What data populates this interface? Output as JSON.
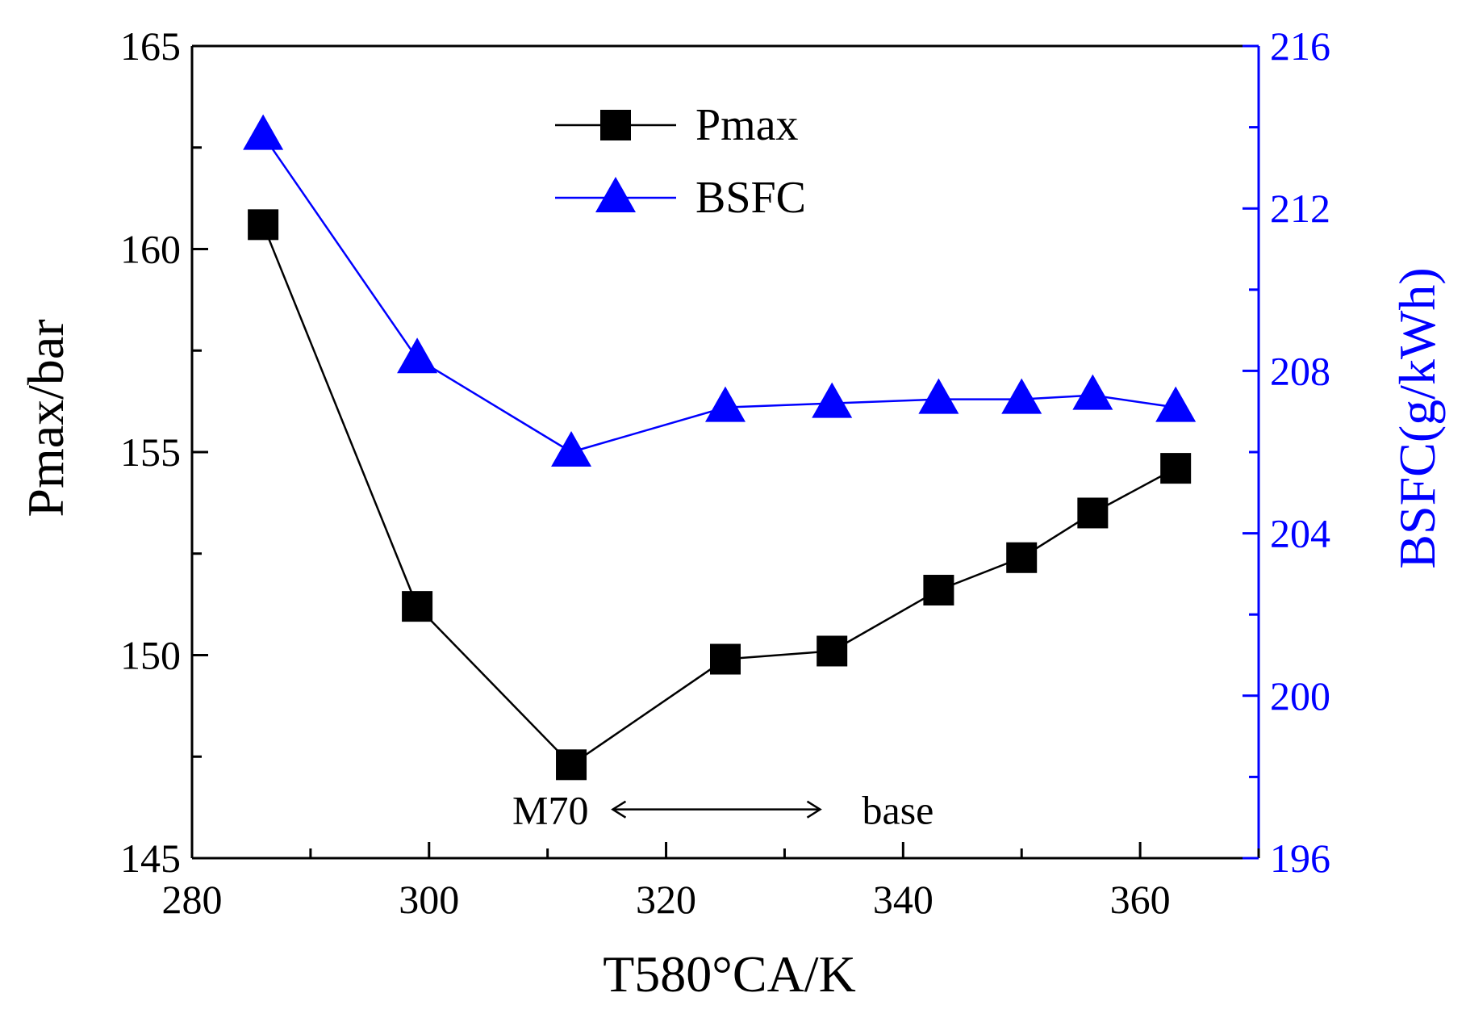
{
  "chart_data": {
    "type": "line",
    "xlabel": "T580°CA/K",
    "ylabel_left": "Pmax/bar",
    "ylabel_right": "BSFC(g/kWh)",
    "xlim": [
      280,
      370
    ],
    "ylim_left": [
      145,
      165
    ],
    "ylim_right": [
      196,
      216
    ],
    "x_ticks": [
      280,
      300,
      320,
      340,
      360
    ],
    "y_ticks_left": [
      145,
      150,
      155,
      160,
      165
    ],
    "y_ticks_right": [
      196,
      200,
      204,
      208,
      212,
      216
    ],
    "grid": false,
    "legend_position": "top-center",
    "series": [
      {
        "name": "Pmax",
        "axis": "left",
        "marker": "square",
        "color": "#000000",
        "x": [
          286,
          299,
          312,
          325,
          334,
          343,
          350,
          356,
          363
        ],
        "y": [
          160.6,
          151.2,
          147.3,
          149.9,
          150.1,
          151.6,
          152.4,
          153.5,
          154.6
        ]
      },
      {
        "name": "BSFC",
        "axis": "right",
        "marker": "triangle",
        "color": "#0000ff",
        "x": [
          286,
          299,
          312,
          325,
          334,
          343,
          350,
          356,
          363
        ],
        "y": [
          213.8,
          208.3,
          206.0,
          207.1,
          207.2,
          207.3,
          207.3,
          207.4,
          207.1
        ]
      }
    ],
    "annotations": {
      "left_label": "M70",
      "right_label": "base",
      "arrow_from_x": 315.5,
      "arrow_to_x": 333.0,
      "arrow_y_left": 146.2
    }
  }
}
